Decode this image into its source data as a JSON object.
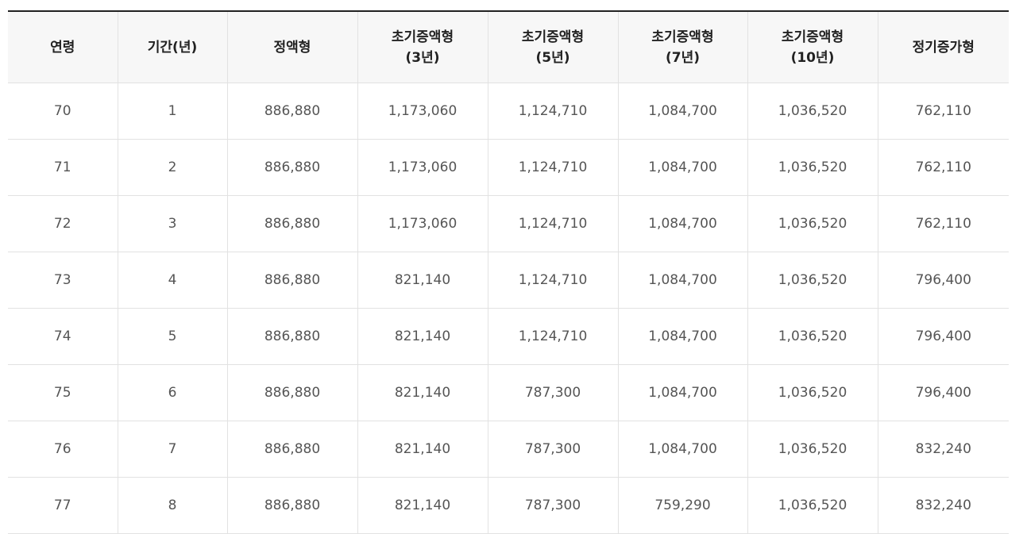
{
  "table": {
    "headers": [
      [
        "연령"
      ],
      [
        "기간(년)"
      ],
      [
        "정액형"
      ],
      [
        "초기증액형",
        "(3년)"
      ],
      [
        "초기증액형",
        "(5년)"
      ],
      [
        "초기증액형",
        "(7년)"
      ],
      [
        "초기증액형",
        "(10년)"
      ],
      [
        "정기증가형"
      ]
    ],
    "rows": [
      [
        "70",
        "1",
        "886,880",
        "1,173,060",
        "1,124,710",
        "1,084,700",
        "1,036,520",
        "762,110"
      ],
      [
        "71",
        "2",
        "886,880",
        "1,173,060",
        "1,124,710",
        "1,084,700",
        "1,036,520",
        "762,110"
      ],
      [
        "72",
        "3",
        "886,880",
        "1,173,060",
        "1,124,710",
        "1,084,700",
        "1,036,520",
        "762,110"
      ],
      [
        "73",
        "4",
        "886,880",
        "821,140",
        "1,124,710",
        "1,084,700",
        "1,036,520",
        "796,400"
      ],
      [
        "74",
        "5",
        "886,880",
        "821,140",
        "1,124,710",
        "1,084,700",
        "1,036,520",
        "796,400"
      ],
      [
        "75",
        "6",
        "886,880",
        "821,140",
        "787,300",
        "1,084,700",
        "1,036,520",
        "796,400"
      ],
      [
        "76",
        "7",
        "886,880",
        "821,140",
        "787,300",
        "1,084,700",
        "1,036,520",
        "832,240"
      ],
      [
        "77",
        "8",
        "886,880",
        "821,140",
        "787,300",
        "759,290",
        "1,036,520",
        "832,240"
      ]
    ]
  }
}
